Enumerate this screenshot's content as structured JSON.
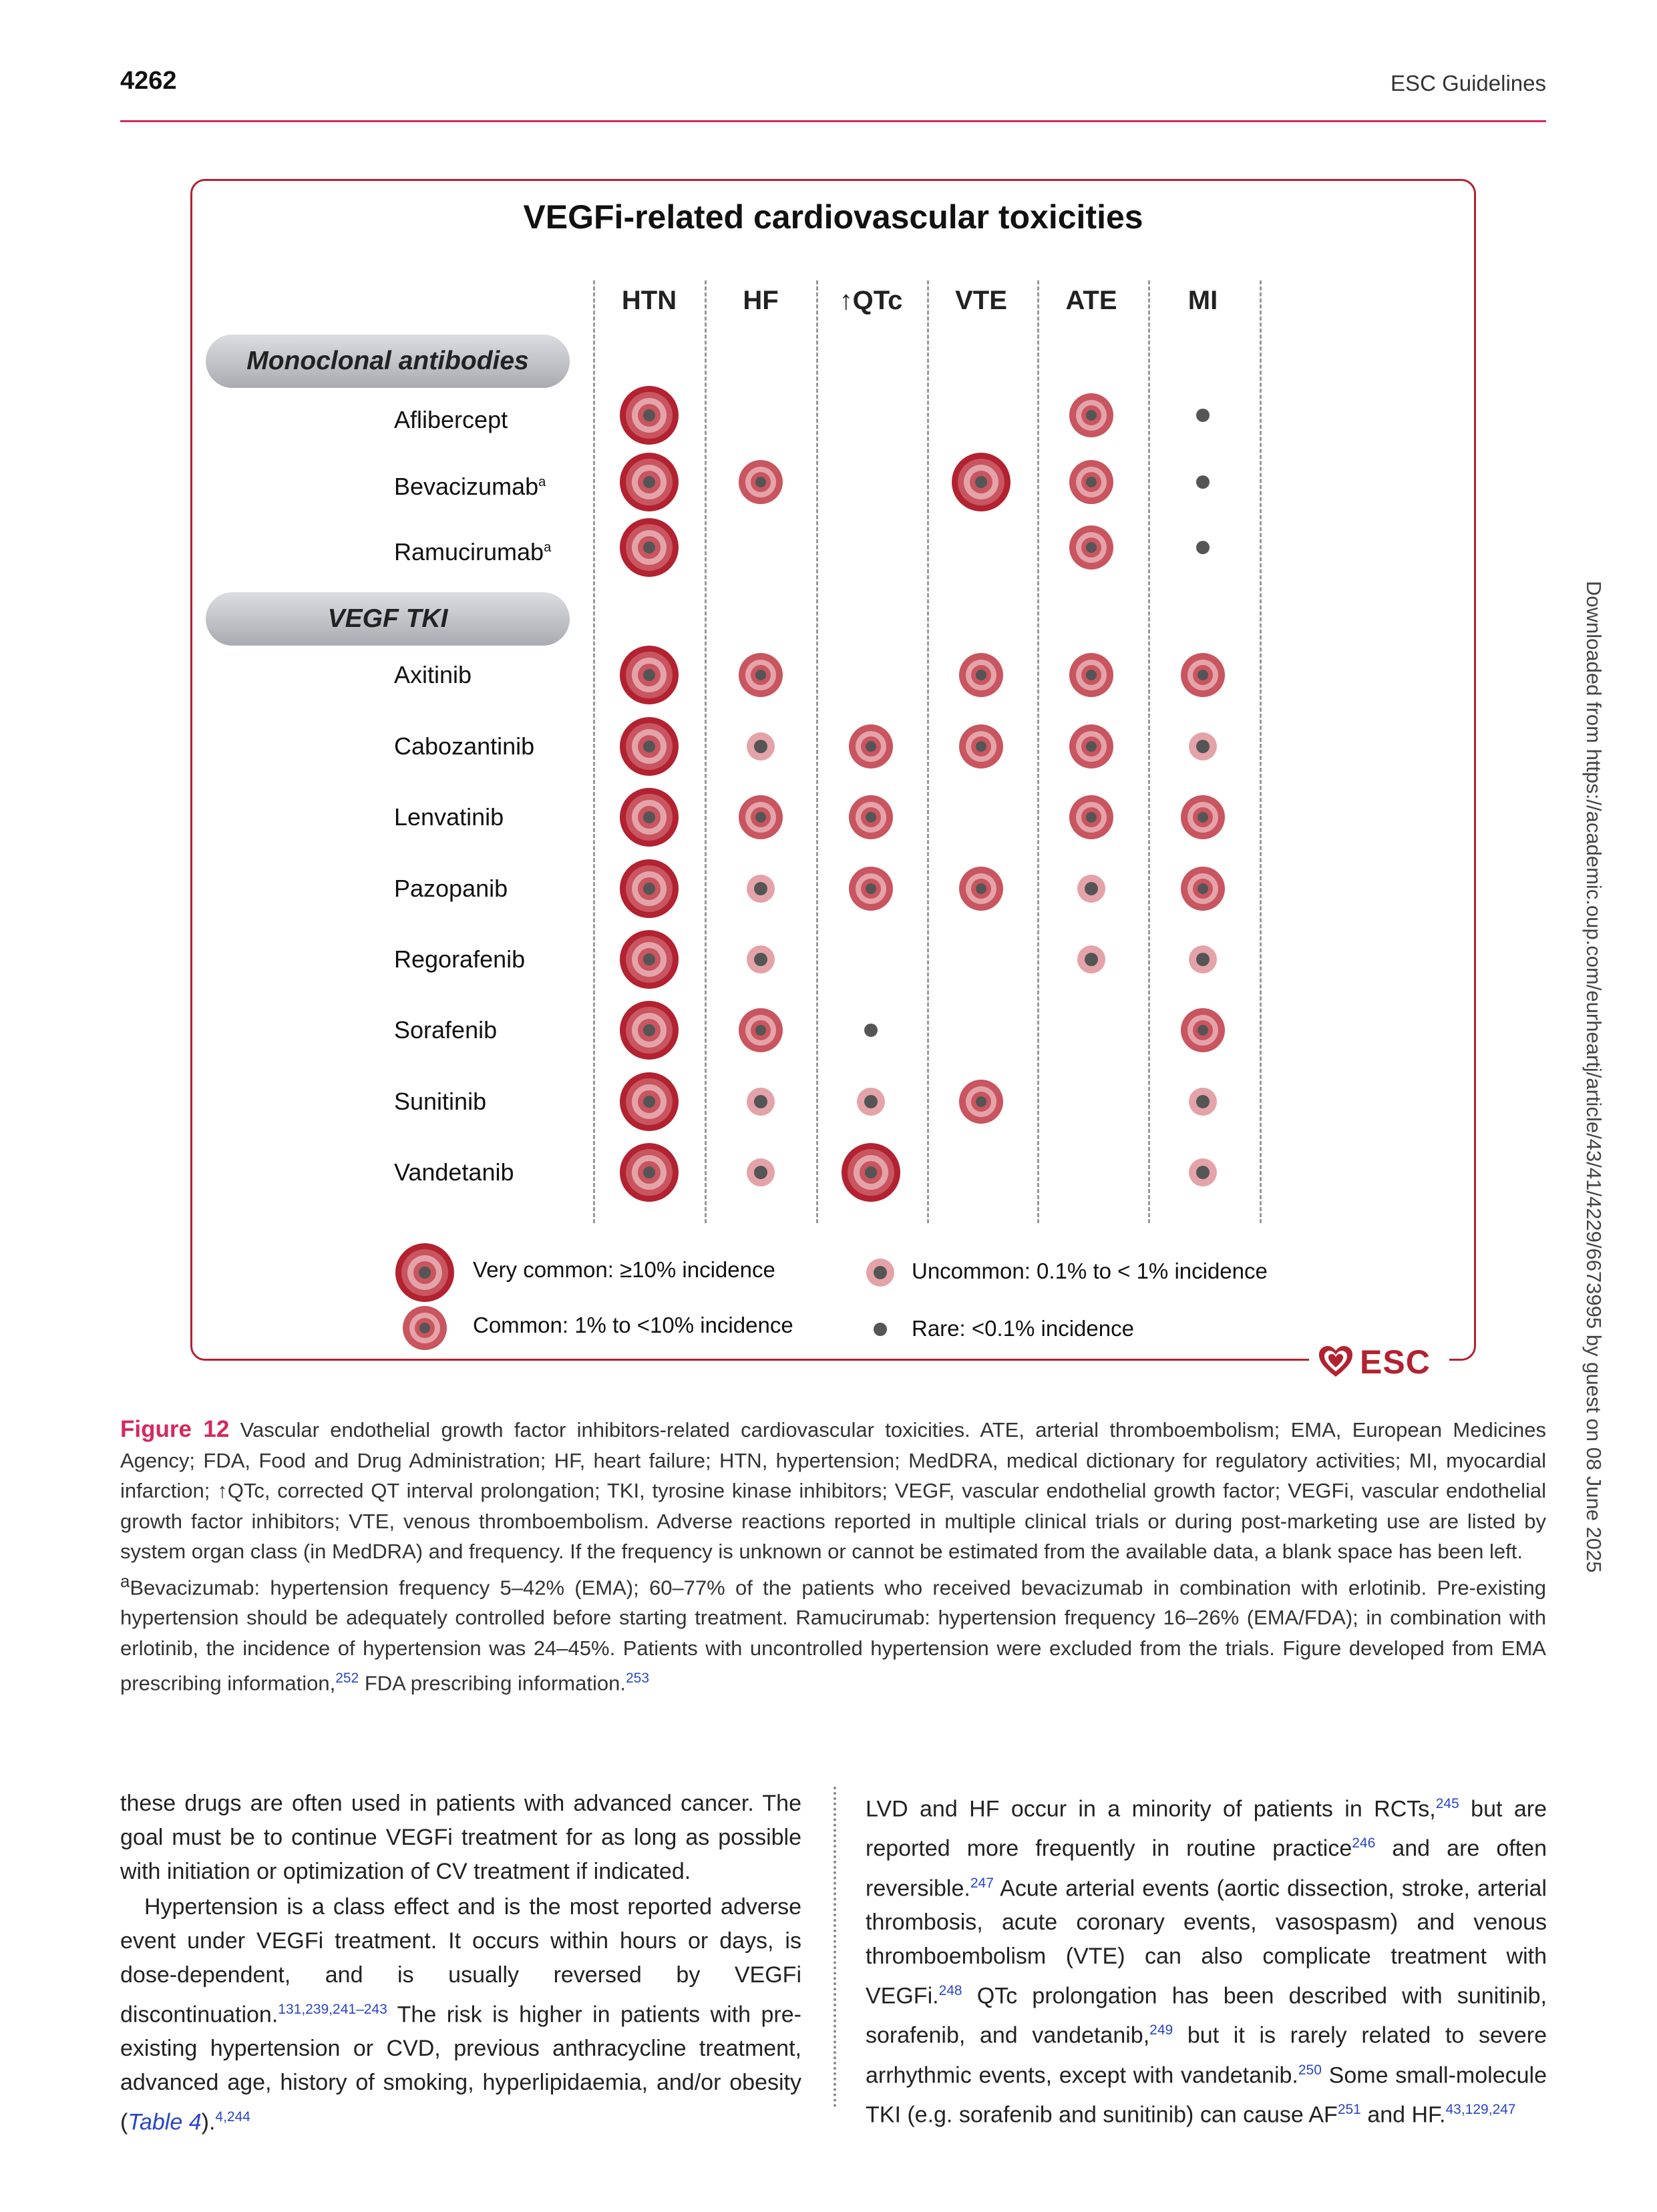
{
  "header": {
    "page_number": "4262",
    "running_title": "ESC Guidelines"
  },
  "figure": {
    "title": "VEGFi-related cardiovascular toxicities",
    "columns": [
      {
        "key": "htn",
        "label": "HTN",
        "arrow": ""
      },
      {
        "key": "hf",
        "label": "HF",
        "arrow": ""
      },
      {
        "key": "qtc",
        "label": "QTc",
        "arrow": "↑"
      },
      {
        "key": "vte",
        "label": "VTE",
        "arrow": ""
      },
      {
        "key": "ate",
        "label": "ATE",
        "arrow": ""
      },
      {
        "key": "mi",
        "label": "MI",
        "arrow": ""
      }
    ],
    "groups": [
      {
        "label": "Monoclonal antibodies",
        "drugs": [
          {
            "name": "Aflibercept",
            "footnote": "",
            "levels": [
              "very_common",
              "",
              "",
              "",
              "common",
              "rare"
            ]
          },
          {
            "name": "Bevacizumab",
            "footnote": "a",
            "levels": [
              "very_common",
              "common",
              "",
              "very_common",
              "common",
              "rare"
            ]
          },
          {
            "name": "Ramucirumab",
            "footnote": "a",
            "levels": [
              "very_common",
              "",
              "",
              "",
              "common",
              "rare"
            ]
          }
        ]
      },
      {
        "label": "VEGF TKI",
        "drugs": [
          {
            "name": "Axitinib",
            "footnote": "",
            "levels": [
              "very_common",
              "common",
              "",
              "common",
              "common",
              "common"
            ]
          },
          {
            "name": "Cabozantinib",
            "footnote": "",
            "levels": [
              "very_common",
              "uncommon",
              "common",
              "common",
              "common",
              "uncommon"
            ]
          },
          {
            "name": "Lenvatinib",
            "footnote": "",
            "levels": [
              "very_common",
              "common",
              "common",
              "",
              "common",
              "common"
            ]
          },
          {
            "name": "Pazopanib",
            "footnote": "",
            "levels": [
              "very_common",
              "uncommon",
              "common",
              "common",
              "uncommon",
              "common"
            ]
          },
          {
            "name": "Regorafenib",
            "footnote": "",
            "levels": [
              "very_common",
              "uncommon",
              "",
              "",
              "uncommon",
              "uncommon"
            ]
          },
          {
            "name": "Sorafenib",
            "footnote": "",
            "levels": [
              "very_common",
              "common",
              "rare",
              "",
              "",
              "common"
            ]
          },
          {
            "name": "Sunitinib",
            "footnote": "",
            "levels": [
              "very_common",
              "uncommon",
              "uncommon",
              "common",
              "",
              "uncommon"
            ]
          },
          {
            "name": "Vandetanib",
            "footnote": "",
            "levels": [
              "very_common",
              "uncommon",
              "very_common",
              "",
              "",
              "uncommon"
            ]
          }
        ]
      }
    ],
    "legend": {
      "very_common": "Very common: ≥10% incidence",
      "common": "Common: 1% to <10% incidence",
      "uncommon": "Uncommon: 0.1% to < 1% incidence",
      "rare": "Rare: <0.1% incidence"
    },
    "logo_text": "ESC",
    "colors": {
      "frame": "#b22230",
      "dark_red": "#b22230",
      "mid_red": "#c8555f",
      "pink": "#e4a3a8",
      "center_grey": "#555555"
    }
  },
  "caption": {
    "label": "Figure 12",
    "text": "Vascular endothelial growth factor inhibitors-related cardiovascular toxicities. ATE, arterial thromboembolism; EMA, European Medicines Agency; FDA, Food and Drug Administration; HF, heart failure; HTN, hypertension; MedDRA, medical dictionary for regulatory activities; MI, myocardial infarction; ↑QTc, corrected QT interval prolongation; TKI, tyrosine kinase inhibitors; VEGF, vascular endothelial growth factor; VEGFi, vascular endothelial growth factor inhibitors; VTE, venous thromboembolism. Adverse reactions reported in multiple clinical trials or during post-marketing use are listed by system organ class (in MedDRA) and frequency. If the frequency is unknown or cannot be estimated from the available data, a blank space has been left.",
    "footnote_marker": "a",
    "footnote_text": "Bevacizumab: hypertension frequency 5–42% (EMA); 60–77% of the patients who received bevacizumab in combination with erlotinib. Pre-existing hypertension should be adequately controlled before starting treatment. Ramucirumab: hypertension frequency 16–26% (EMA/FDA); in combination with erlotinib, the incidence of hypertension was 24–45%. Patients with uncontrolled hypertension were excluded from the trials. Figure developed from EMA prescribing information,",
    "ref_252": "252",
    "text_fda": " FDA prescribing information.",
    "ref_253": "253"
  },
  "body": {
    "left": {
      "p1": "these drugs are often used in patients with advanced cancer. The goal must be to continue VEGFi treatment for as long as possible with initiation or optimization of CV treatment if indicated.",
      "p2_a": "Hypertension is a class effect and is the most reported adverse event under VEGFi treatment. It occurs within hours or days, is dose-dependent, and is usually reversed by VEGFi discontinuation.",
      "p2_ref1": "131,239,241–243",
      "p2_b": " The risk is higher in patients with pre-existing hypertension or CVD, previous anthracycline treatment, advanced age, history of smoking, hyperlipidaemia, and/or obesity (",
      "p2_table": "Table 4",
      "p2_c": ").",
      "p2_ref2": "4,244"
    },
    "right": {
      "s1": "LVD and HF occur in a minority of patients in RCTs,",
      "r1": "245",
      "s2": " but are reported more frequently in routine practice",
      "r2": "246",
      "s3": " and are often reversible.",
      "r3": "247",
      "s4": " Acute arterial events (aortic dissection, stroke, arterial thrombosis, acute coronary events, vasospasm) and venous thromboembolism (VTE) can also complicate treatment with VEGFi.",
      "r4": "248",
      "s5": " QTc prolongation has been described with sunitinib, sorafenib, and vandetanib,",
      "r5": "249",
      "s6": " but it is rarely related to severe arrhythmic events, except with vandetanib.",
      "r6": "250",
      "s7": " Some small-molecule TKI (e.g. sorafenib and sunitinib) can cause AF",
      "r7": "251",
      "s8": " and HF.",
      "r8": "43,129,247"
    }
  },
  "side_note": "Downloaded from https://academic.oup.com/eurheartj/article/43/41/4229/6673995 by guest on 08 June 2025"
}
